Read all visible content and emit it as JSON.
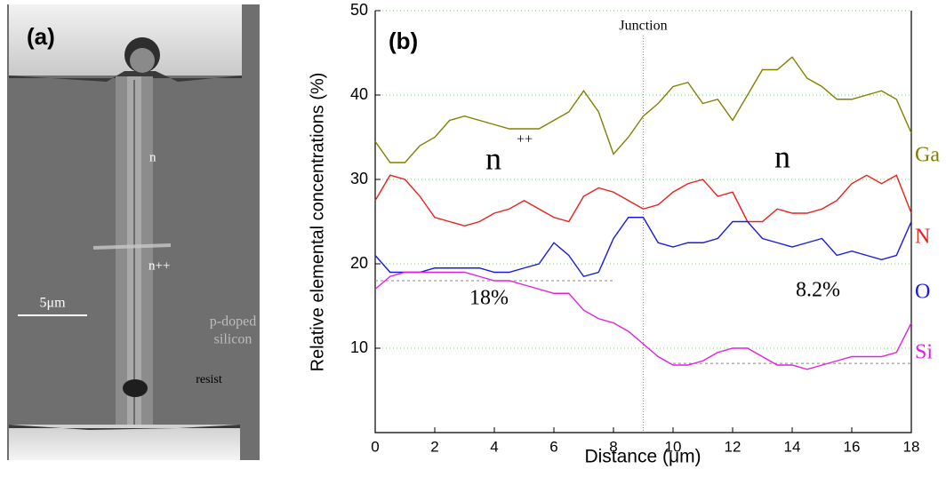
{
  "image_panel": {
    "label": "(a)",
    "regions": [
      "n",
      "n++"
    ],
    "scale_bar": "5μm",
    "substrate": [
      "p-doped",
      "silicon"
    ],
    "pad": "resist"
  },
  "chart_data": {
    "type": "line",
    "panel_label": "(b)",
    "x_label": "Distance (μm)",
    "y_label": "Relative elemental concentrations (%)",
    "x": [
      0,
      0.5,
      1,
      1.5,
      2,
      2.5,
      3,
      3.5,
      4,
      4.5,
      5,
      5.5,
      6,
      6.5,
      7,
      7.5,
      8,
      8.5,
      9,
      9.5,
      10,
      10.5,
      11,
      11.5,
      12,
      12.5,
      13,
      13.5,
      14,
      14.5,
      15,
      15.5,
      16,
      16.5,
      17,
      17.5,
      18
    ],
    "series": [
      {
        "name": "Ga",
        "color": "#808000",
        "values": [
          34.5,
          32,
          32,
          34,
          35,
          37,
          37.5,
          37,
          36.5,
          36,
          36,
          36,
          37,
          38,
          40.5,
          38,
          33,
          35,
          37.5,
          39,
          41,
          41.5,
          39,
          39.5,
          37,
          40,
          43,
          43,
          44.5,
          42,
          41,
          39.5,
          39.5,
          40,
          40.5,
          39.5,
          35.5
        ]
      },
      {
        "name": "N",
        "color": "#e8201c",
        "values": [
          27.5,
          30.5,
          30,
          28,
          25.5,
          25,
          24.5,
          25,
          26,
          26.5,
          27.5,
          26.5,
          25.5,
          25,
          28,
          29,
          28.5,
          27.5,
          26.5,
          27,
          28.5,
          29.5,
          30,
          28,
          28.5,
          25,
          25,
          26.5,
          26,
          26,
          26.5,
          27.5,
          29.5,
          30.5,
          29.5,
          30.5,
          26
        ]
      },
      {
        "name": "O",
        "color": "#1a1adc",
        "values": [
          21,
          19,
          19,
          19,
          19.5,
          19.5,
          19.5,
          19.5,
          19,
          19,
          19.5,
          20,
          22.5,
          21,
          18.5,
          19,
          23,
          25.5,
          25.5,
          22.5,
          22,
          22.5,
          22.5,
          23,
          25,
          25,
          23,
          22.5,
          22,
          22.5,
          23,
          21,
          21.5,
          21,
          20.5,
          21,
          25
        ]
      },
      {
        "name": "Si",
        "color": "#e020e0",
        "values": [
          17,
          18.5,
          19,
          19,
          19,
          19,
          19,
          18.5,
          18,
          18,
          17.5,
          17,
          16.5,
          16.5,
          14.5,
          13.5,
          13,
          12,
          10.5,
          9,
          8,
          8,
          8.5,
          9.5,
          10,
          10,
          9,
          8,
          8,
          7.5,
          8,
          8.5,
          9,
          9,
          9,
          9.5,
          13
        ]
      }
    ],
    "xlim": [
      0,
      18
    ],
    "xticks": [
      0,
      2,
      4,
      6,
      8,
      10,
      12,
      14,
      16,
      18
    ],
    "ylim": [
      0,
      50
    ],
    "yticks": [
      10,
      20,
      30,
      40,
      50
    ],
    "grid": true,
    "junction": {
      "x": 9,
      "label": "Junction"
    },
    "regions": [
      {
        "label": "n",
        "superscript": "++"
      },
      {
        "label": "n"
      }
    ],
    "reference_lines": [
      {
        "value": 18,
        "label": "18%",
        "x": [
          0,
          8
        ]
      },
      {
        "value": 8.2,
        "label": "8.2%",
        "x": [
          10,
          18
        ]
      }
    ]
  }
}
